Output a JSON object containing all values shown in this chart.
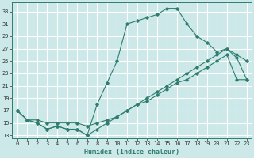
{
  "xlabel": "Humidex (Indice chaleur)",
  "bg_color": "#cce8e8",
  "grid_color": "#ffffff",
  "line_color": "#2e7d6e",
  "xlim_min": -0.5,
  "xlim_max": 23.5,
  "ylim_min": 12.5,
  "ylim_max": 34.5,
  "xticks": [
    0,
    1,
    2,
    3,
    4,
    5,
    6,
    7,
    8,
    9,
    10,
    11,
    12,
    13,
    14,
    15,
    16,
    17,
    18,
    19,
    20,
    21,
    22,
    23
  ],
  "yticks": [
    13,
    15,
    17,
    19,
    21,
    23,
    25,
    27,
    29,
    31,
    33
  ],
  "line1_x": [
    0,
    1,
    2,
    3,
    4,
    5,
    6,
    7,
    8,
    9,
    10,
    11,
    12,
    13,
    14,
    15,
    16,
    17,
    18,
    19,
    20,
    21,
    22,
    23
  ],
  "line1_y": [
    17,
    15.5,
    15,
    14,
    14.5,
    14,
    14,
    13,
    18,
    21.5,
    25,
    31,
    31.5,
    32,
    32.5,
    33.5,
    33.5,
    31,
    29,
    28,
    26.5,
    27,
    25.5,
    22
  ],
  "line2_x": [
    0,
    1,
    2,
    3,
    4,
    5,
    6,
    7,
    8,
    9,
    10,
    11,
    12,
    13,
    14,
    15,
    16,
    17,
    18,
    19,
    20,
    21,
    22,
    23
  ],
  "line2_y": [
    17,
    15.5,
    15,
    14,
    14.5,
    14,
    14,
    13,
    14,
    15,
    16,
    17,
    18,
    19,
    20,
    21,
    22,
    23,
    24,
    25,
    26,
    27,
    26,
    25
  ],
  "line3_x": [
    0,
    1,
    2,
    3,
    4,
    5,
    6,
    7,
    8,
    9,
    10,
    11,
    12,
    13,
    14,
    15,
    16,
    17,
    18,
    19,
    20,
    21,
    22,
    23
  ],
  "line3_y": [
    17,
    15.5,
    15.5,
    15,
    15,
    15,
    15,
    14.5,
    15,
    15.5,
    16,
    17,
    18,
    18.5,
    19.5,
    20.5,
    21.5,
    22,
    23,
    24,
    25,
    26,
    22,
    22
  ]
}
